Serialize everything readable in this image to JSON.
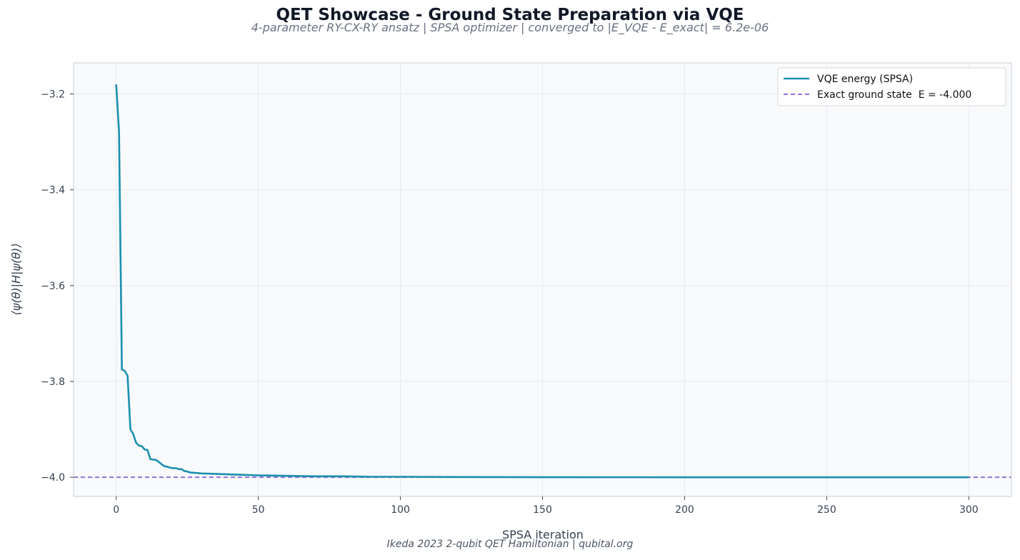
{
  "header": {
    "title": "QET Showcase - Ground State Preparation via VQE",
    "subtitle": "4-parameter RY-CX-RY ansatz  |  SPSA optimizer  |  converged to |E_VQE - E_exact| = 6.2e-06"
  },
  "footer": {
    "text": "Ikeda 2023 2-qubit QET Hamiltonian  |  qubital.org"
  },
  "chart_data": {
    "type": "line",
    "xlabel": "SPSA iteration",
    "ylabel": "⟨ψ(θ)|H|ψ(θ)⟩",
    "xlim": [
      -15,
      315
    ],
    "ylim": [
      -4.04,
      -3.135
    ],
    "xticks": [
      0,
      50,
      100,
      150,
      200,
      250,
      300
    ],
    "yticks": [
      -3.2,
      -3.4,
      -3.6,
      -3.8,
      -4.0
    ],
    "ytick_labels": [
      "−3.2",
      "−3.4",
      "−3.6",
      "−3.8",
      "−4.0"
    ],
    "grid": true,
    "legend_position": "top-right",
    "colors": {
      "vqe": "#1a8fae",
      "exact": "#9370db",
      "plot_bg": "#f8fafc",
      "frame": "#d1d5db",
      "grid": "#e8ebef"
    },
    "series": [
      {
        "name": "VQE energy (SPSA)",
        "style": "solid",
        "x": [
          0,
          1,
          2,
          3,
          4,
          5,
          6,
          7,
          8,
          9,
          10,
          11,
          12,
          13,
          14,
          15,
          16,
          17,
          18,
          19,
          20,
          21,
          22,
          23,
          24,
          25,
          26,
          28,
          30,
          35,
          40,
          45,
          50,
          60,
          70,
          80,
          90,
          100,
          120,
          150,
          200,
          250,
          300
        ],
        "y": [
          -3.18,
          -3.28,
          -3.775,
          -3.778,
          -3.788,
          -3.9,
          -3.91,
          -3.928,
          -3.934,
          -3.935,
          -3.942,
          -3.943,
          -3.962,
          -3.963,
          -3.964,
          -3.968,
          -3.973,
          -3.977,
          -3.978,
          -3.98,
          -3.981,
          -3.981,
          -3.983,
          -3.983,
          -3.987,
          -3.988,
          -3.99,
          -3.991,
          -3.992,
          -3.993,
          -3.994,
          -3.995,
          -3.996,
          -3.997,
          -3.998,
          -3.998,
          -3.999,
          -3.999,
          -3.9995,
          -3.9998,
          -4.0,
          -4.0,
          -4.0
        ]
      },
      {
        "name": "Exact ground state  E = -4.000",
        "style": "dashed",
        "y": -4.0
      }
    ]
  }
}
